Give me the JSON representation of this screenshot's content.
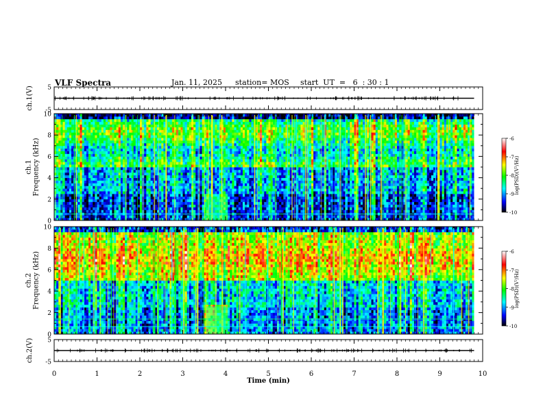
{
  "header": {
    "title": "VLF Spectra",
    "date": "Jan. 11, 2025",
    "station": "station= MOS",
    "start_ut": "start  UT  =   6  : 30 : 1"
  },
  "chart_data": [
    {
      "type": "line",
      "panel": "ch1-waveform",
      "ylabel": "ch.1(V)",
      "ylim": [
        -5,
        5
      ],
      "ytick_labels": [
        "5",
        "-5"
      ],
      "x": [
        0,
        9.8
      ],
      "values": [
        0,
        0
      ]
    },
    {
      "type": "heatmap",
      "panel": "ch1-spectrogram",
      "ylabel": "ch.1\nFrequency (kHz)",
      "ylim": [
        0,
        10
      ],
      "xlim": [
        0,
        10
      ],
      "ytick_labels": [
        "0",
        "2",
        "4",
        "6",
        "8",
        "10"
      ],
      "data_xlim": [
        0,
        9.8
      ],
      "colorbar": {
        "label": "log(PSD)(V²/Hz)",
        "range": [
          -10,
          -6
        ],
        "tick_labels": [
          "-6",
          "-7",
          "-8",
          "-9",
          "-10"
        ],
        "colormap": [
          "#000000",
          "#0000ff",
          "#00ffff",
          "#00ff00",
          "#ffff00",
          "#ff0000",
          "#ffffff"
        ]
      }
    },
    {
      "type": "heatmap",
      "panel": "ch2-spectrogram",
      "ylabel": "ch.2\nFrequency (kHz)",
      "ylim": [
        0,
        10
      ],
      "xlim": [
        0,
        10
      ],
      "ytick_labels": [
        "0",
        "2",
        "4",
        "6",
        "8",
        "10"
      ],
      "data_xlim": [
        0,
        9.8
      ],
      "colorbar": {
        "label": "log(PSD)(V²/Hz)",
        "range": [
          -10,
          -6
        ],
        "tick_labels": [
          "-6",
          "-7",
          "-8",
          "-9",
          "-10"
        ],
        "colormap": [
          "#000000",
          "#0000ff",
          "#00ffff",
          "#00ff00",
          "#ffff00",
          "#ff0000",
          "#ffffff"
        ]
      }
    },
    {
      "type": "line",
      "panel": "ch2-waveform",
      "ylabel": "ch.2(V)",
      "ylim": [
        -5,
        5
      ],
      "ytick_labels": [
        "5",
        "-5"
      ],
      "x": [
        0,
        9.8
      ],
      "values": [
        0,
        0
      ]
    }
  ],
  "x_axis": {
    "label": "Time (min)",
    "range": [
      0,
      10
    ],
    "tick_labels": [
      "0",
      "1",
      "2",
      "3",
      "4",
      "5",
      "6",
      "7",
      "8",
      "9",
      "10"
    ]
  }
}
